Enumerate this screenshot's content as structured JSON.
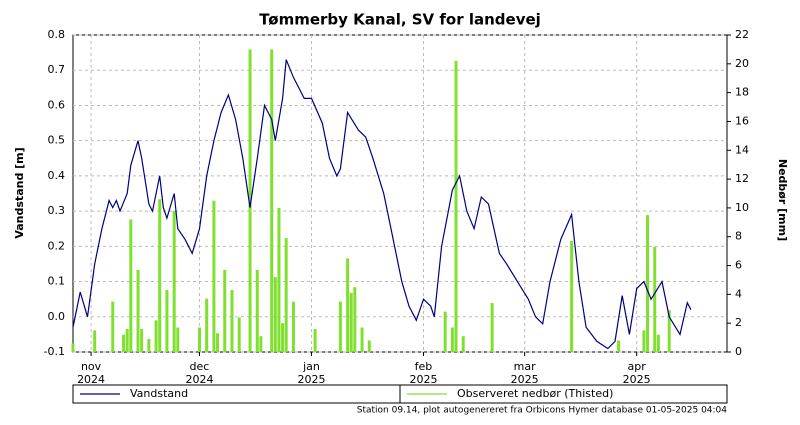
{
  "chart_data": {
    "type": "line-bar",
    "title": "Tømmerby Kanal, SV for landevej",
    "ylabel": "Vandstand [m]",
    "y2label": "Nedbør [mm]",
    "footer": "Station 09.14, plot autogenereret fra Orbicons Hymer database 01-05-2025 04:04",
    "xlim": [
      "2024-10-27",
      "2025-04-26"
    ],
    "xticks": [
      {
        "value": "2024-11-01",
        "label": "nov\n2024"
      },
      {
        "value": "2024-12-01",
        "label": "dec\n2024"
      },
      {
        "value": "2025-01-01",
        "label": "jan\n2025"
      },
      {
        "value": "2025-02-01",
        "label": "feb\n2025"
      },
      {
        "value": "2025-03-01",
        "label": "mar\n2025"
      },
      {
        "value": "2025-04-01",
        "label": "apr\n2025"
      }
    ],
    "ylim": [
      -0.1,
      0.8
    ],
    "yticks": [
      -0.1,
      {
        "value": 0,
        "label": "0.0"
      },
      0.1,
      0.2,
      0.3,
      0.4,
      0.5,
      0.6,
      0.7,
      0.8
    ],
    "y2lim": [
      0,
      22
    ],
    "y2ticks": [
      0,
      2,
      4,
      6,
      8,
      10,
      12,
      14,
      16,
      18,
      20,
      22
    ],
    "grid": true,
    "series": [
      {
        "name": "Vandstand",
        "color": "#000080",
        "kind": "line",
        "x": [
          "2024-10-27",
          "2024-10-29",
          "2024-10-31",
          "2024-11-02",
          "2024-11-04",
          "2024-11-06",
          "2024-11-07",
          "2024-11-08",
          "2024-11-09",
          "2024-11-11",
          "2024-11-12",
          "2024-11-14",
          "2024-11-15",
          "2024-11-17",
          "2024-11-18",
          "2024-11-20",
          "2024-11-21",
          "2024-11-22",
          "2024-11-24",
          "2024-11-25",
          "2024-11-27",
          "2024-11-29",
          "2024-12-01",
          "2024-12-03",
          "2024-12-05",
          "2024-12-07",
          "2024-12-09",
          "2024-12-11",
          "2024-12-13",
          "2024-12-15",
          "2024-12-17",
          "2024-12-19",
          "2024-12-21",
          "2024-12-22",
          "2024-12-24",
          "2024-12-25",
          "2024-12-27",
          "2024-12-30",
          "2025-01-01",
          "2025-01-04",
          "2025-01-06",
          "2025-01-08",
          "2025-01-09",
          "2025-01-11",
          "2025-01-14",
          "2025-01-16",
          "2025-01-18",
          "2025-01-21",
          "2025-01-23",
          "2025-01-26",
          "2025-01-28",
          "2025-01-30",
          "2025-02-01",
          "2025-02-03",
          "2025-02-04",
          "2025-02-06",
          "2025-02-09",
          "2025-02-11",
          "2025-02-13",
          "2025-02-15",
          "2025-02-17",
          "2025-02-19",
          "2025-02-22",
          "2025-02-24",
          "2025-02-27",
          "2025-03-02",
          "2025-03-04",
          "2025-03-06",
          "2025-03-08",
          "2025-03-11",
          "2025-03-14",
          "2025-03-16",
          "2025-03-18",
          "2025-03-21",
          "2025-03-24",
          "2025-03-26",
          "2025-03-28",
          "2025-03-30",
          "2025-04-01",
          "2025-04-03",
          "2025-04-05",
          "2025-04-08",
          "2025-04-10",
          "2025-04-13",
          "2025-04-15",
          "2025-04-16"
        ],
        "values": [
          -0.03,
          0.07,
          0.0,
          0.15,
          0.25,
          0.33,
          0.31,
          0.33,
          0.3,
          0.35,
          0.43,
          0.5,
          0.45,
          0.32,
          0.3,
          0.4,
          0.31,
          0.28,
          0.35,
          0.25,
          0.22,
          0.18,
          0.25,
          0.4,
          0.5,
          0.58,
          0.63,
          0.56,
          0.45,
          0.31,
          0.45,
          0.6,
          0.56,
          0.5,
          0.62,
          0.73,
          0.68,
          0.62,
          0.62,
          0.55,
          0.45,
          0.4,
          0.42,
          0.58,
          0.53,
          0.51,
          0.45,
          0.35,
          0.25,
          0.1,
          0.03,
          -0.01,
          0.05,
          0.03,
          0.0,
          0.2,
          0.36,
          0.4,
          0.3,
          0.25,
          0.34,
          0.32,
          0.18,
          0.15,
          0.1,
          0.05,
          0.0,
          -0.02,
          0.1,
          0.22,
          0.29,
          0.1,
          -0.03,
          -0.07,
          -0.09,
          -0.07,
          0.06,
          -0.05,
          0.08,
          0.1,
          0.05,
          0.1,
          0.0,
          -0.05,
          0.04,
          0.02
        ]
      },
      {
        "name": "Observeret nedbør (Thisted)",
        "color": "#80e030",
        "kind": "bar",
        "axis": "y2",
        "x": [
          "2024-10-27",
          "2024-11-02",
          "2024-11-07",
          "2024-11-10",
          "2024-11-11",
          "2024-11-12",
          "2024-11-14",
          "2024-11-15",
          "2024-11-17",
          "2024-11-19",
          "2024-11-20",
          "2024-11-22",
          "2024-11-24",
          "2024-11-25",
          "2024-12-01",
          "2024-12-03",
          "2024-12-05",
          "2024-12-06",
          "2024-12-08",
          "2024-12-10",
          "2024-12-12",
          "2024-12-15",
          "2024-12-17",
          "2024-12-18",
          "2024-12-21",
          "2024-12-22",
          "2024-12-23",
          "2024-12-24",
          "2024-12-25",
          "2024-12-27",
          "2025-01-02",
          "2025-01-09",
          "2025-01-11",
          "2025-01-12",
          "2025-01-13",
          "2025-01-15",
          "2025-01-17",
          "2025-02-07",
          "2025-02-09",
          "2025-02-10",
          "2025-02-12",
          "2025-02-20",
          "2025-03-14",
          "2025-03-27",
          "2025-04-03",
          "2025-04-04",
          "2025-04-06",
          "2025-04-07",
          "2025-04-10"
        ],
        "values": [
          0.6,
          1.5,
          3.5,
          1.2,
          1.6,
          9.2,
          5.7,
          1.6,
          0.9,
          2.2,
          10.6,
          4.3,
          9.8,
          1.7,
          1.7,
          3.7,
          10.5,
          1.3,
          5.7,
          4.3,
          2.4,
          21.0,
          5.7,
          1.1,
          21.0,
          5.2,
          10.0,
          2.0,
          7.9,
          3.5,
          1.6,
          3.5,
          6.5,
          4.1,
          4.5,
          1.7,
          0.8,
          2.8,
          1.7,
          20.2,
          1.1,
          3.4,
          7.7,
          0.8,
          1.5,
          9.5,
          7.3,
          1.2,
          2.9
        ]
      }
    ]
  }
}
